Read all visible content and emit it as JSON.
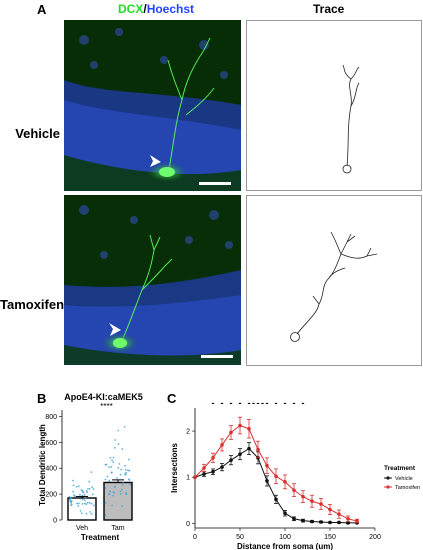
{
  "panel_a": {
    "letter": "A",
    "header_stain_1": "DCX",
    "header_sep": "/",
    "header_stain_2": "Hoechst",
    "header_trace": "Trace",
    "row_labels": [
      "Vehicle",
      "Tamoxifen"
    ]
  },
  "panel_b": {
    "letter": "B"
  },
  "panel_c": {
    "letter": "C"
  },
  "chart_data": [
    {
      "type": "bar",
      "title": "ApoE4-KI:caMEK5",
      "xlabel": "Treatment",
      "ylabel": "Total Dendritic length",
      "categories": [
        "Veh",
        "Tam"
      ],
      "values": [
        170,
        290
      ],
      "errors": [
        12,
        20
      ],
      "bar_colors": [
        "#ffffff",
        "#bdbdbd"
      ],
      "point_color": "#3aa0d8",
      "ylim": [
        0,
        850
      ],
      "yticks": [
        0,
        200,
        400,
        600,
        800
      ],
      "significance": "****",
      "grid": false
    },
    {
      "type": "line",
      "xlabel": "Distance from soma (um)",
      "ylabel": "Intersections",
      "xlim": [
        0,
        200
      ],
      "ylim": [
        -0.1,
        2.5
      ],
      "xticks": [
        0,
        50,
        100,
        150,
        200
      ],
      "yticks": [
        0,
        1,
        2
      ],
      "legend_title": "Treatment",
      "legend_position": "right",
      "x": [
        0,
        10,
        20,
        30,
        40,
        50,
        60,
        70,
        80,
        90,
        100,
        110,
        120,
        130,
        140,
        150,
        160,
        170,
        180
      ],
      "series": [
        {
          "name": "Vehicle",
          "color": "#111111",
          "values": [
            1.0,
            1.07,
            1.12,
            1.22,
            1.37,
            1.5,
            1.62,
            1.42,
            0.92,
            0.52,
            0.22,
            0.1,
            0.06,
            0.04,
            0.03,
            0.02,
            0.02,
            0.01,
            0.01
          ],
          "errors": [
            0.0,
            0.05,
            0.06,
            0.08,
            0.1,
            0.12,
            0.13,
            0.13,
            0.11,
            0.09,
            0.06,
            0.04,
            0.03,
            0.02,
            0.02,
            0.01,
            0.01,
            0.01,
            0.01
          ]
        },
        {
          "name": "Tamoxifen",
          "color": "#d93030",
          "values": [
            1.0,
            1.2,
            1.42,
            1.7,
            1.97,
            2.12,
            2.05,
            1.6,
            1.25,
            1.02,
            0.9,
            0.72,
            0.58,
            0.48,
            0.42,
            0.3,
            0.2,
            0.1,
            0.05
          ],
          "errors": [
            0.0,
            0.08,
            0.1,
            0.13,
            0.15,
            0.18,
            0.2,
            0.18,
            0.17,
            0.16,
            0.15,
            0.14,
            0.13,
            0.13,
            0.12,
            0.11,
            0.09,
            0.06,
            0.04
          ]
        }
      ],
      "significance_marker": "-",
      "significance_x": [
        20,
        30,
        40,
        50,
        60,
        65,
        70,
        75,
        80,
        90,
        100,
        110,
        120
      ]
    }
  ]
}
